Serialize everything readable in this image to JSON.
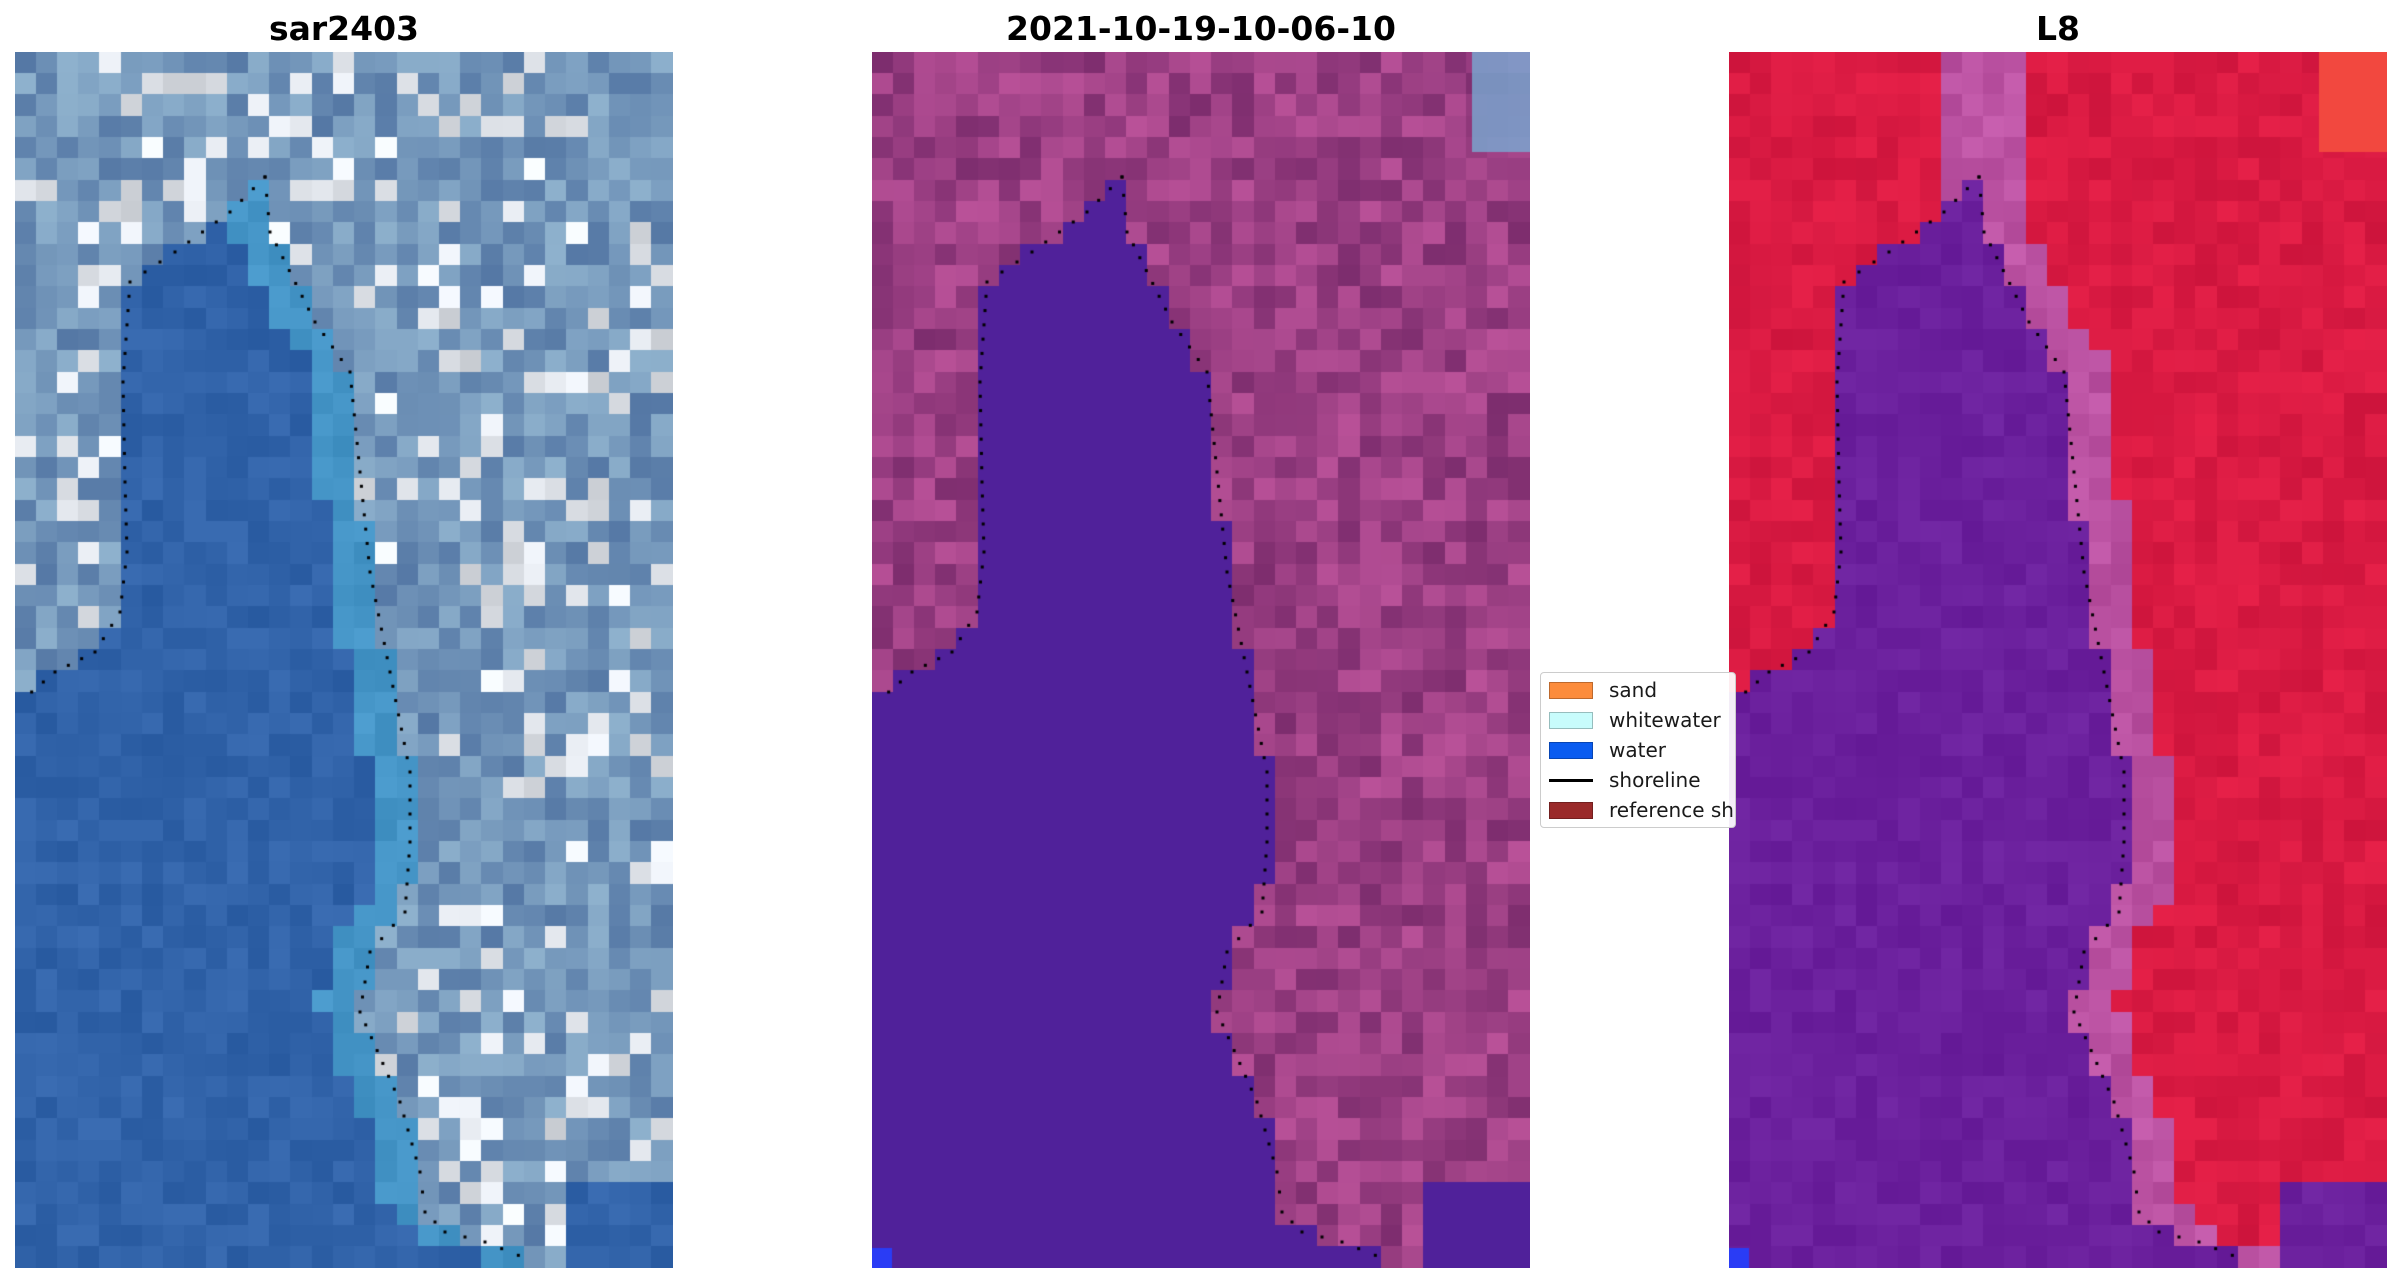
{
  "panels": [
    {
      "title": "sar2403",
      "style": "rgb",
      "accent": "#2f5ea8"
    },
    {
      "title": "2021-10-19-10-06-10",
      "style": "classified",
      "accent": "#50219a"
    },
    {
      "title": "L8",
      "style": "mndwi",
      "accent": "#c4143e"
    }
  ],
  "legend": {
    "items": [
      {
        "label": "sand",
        "color": "#fc8c3c",
        "kind": "patch"
      },
      {
        "label": "whitewater",
        "color": "#c8fcfc",
        "kind": "patch"
      },
      {
        "label": "water",
        "color": "#0a5cf0",
        "kind": "patch"
      },
      {
        "label": "shoreline",
        "color": "#000000",
        "kind": "line"
      },
      {
        "label": "reference shoreline",
        "color": "#9a2a2a",
        "kind": "patch"
      }
    ]
  }
}
